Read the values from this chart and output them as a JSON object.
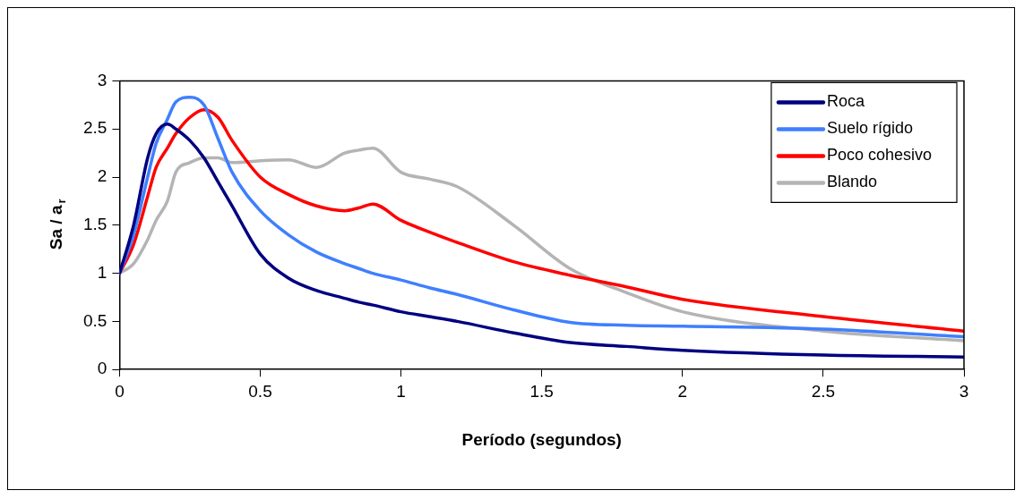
{
  "chart_data": {
    "type": "line",
    "xlabel": "Período (segundos)",
    "ylabel": "Sa / a$_{r}$",
    "xlim": [
      0,
      3
    ],
    "xticks": [
      0,
      0.5,
      1,
      1.5,
      2,
      2.5,
      3
    ],
    "ylim": [
      0,
      3
    ],
    "yticks": [
      0,
      0.5,
      1,
      1.5,
      2,
      2.5,
      3
    ],
    "grid": false,
    "legend": "top right",
    "marker": "none",
    "line_style": "solid",
    "x": [
      0,
      0.05,
      0.1,
      0.13,
      0.17,
      0.2,
      0.25,
      0.3,
      0.35,
      0.4,
      0.5,
      0.6,
      0.7,
      0.8,
      0.85,
      0.9,
      1,
      1.1,
      1.2,
      1.4,
      1.6,
      1.8,
      2,
      2.5,
      3
    ],
    "series": [
      {
        "name": "Roca",
        "color": "#000080",
        "values": [
          1,
          1.5,
          2.2,
          2.45,
          2.55,
          2.5,
          2.38,
          2.2,
          1.95,
          1.7,
          1.2,
          0.95,
          0.82,
          0.74,
          0.7,
          0.67,
          0.6,
          0.55,
          0.5,
          0.38,
          0.28,
          0.24,
          0.2,
          0.15,
          0.13
        ]
      },
      {
        "name": "Suelo rígido",
        "color": "#3f7fff",
        "values": [
          1,
          1.4,
          2,
          2.35,
          2.6,
          2.78,
          2.83,
          2.75,
          2.4,
          2.05,
          1.65,
          1.4,
          1.22,
          1.1,
          1.05,
          1,
          0.93,
          0.85,
          0.78,
          0.62,
          0.49,
          0.46,
          0.45,
          0.42,
          0.34
        ]
      },
      {
        "name": "Poco cohesivo",
        "color": "#ff0000",
        "values": [
          1,
          1.3,
          1.8,
          2.1,
          2.3,
          2.45,
          2.62,
          2.7,
          2.62,
          2.38,
          2,
          1.82,
          1.7,
          1.65,
          1.68,
          1.72,
          1.55,
          1.43,
          1.32,
          1.12,
          0.98,
          0.86,
          0.73,
          0.55,
          0.4
        ]
      },
      {
        "name": "Blando",
        "color": "#b4b4b4",
        "values": [
          1,
          1.1,
          1.35,
          1.55,
          1.75,
          2.05,
          2.15,
          2.2,
          2.2,
          2.15,
          2.17,
          2.18,
          2.1,
          2.25,
          2.28,
          2.3,
          2.05,
          1.98,
          1.9,
          1.5,
          1.05,
          0.8,
          0.6,
          0.4,
          0.3
        ]
      }
    ]
  }
}
